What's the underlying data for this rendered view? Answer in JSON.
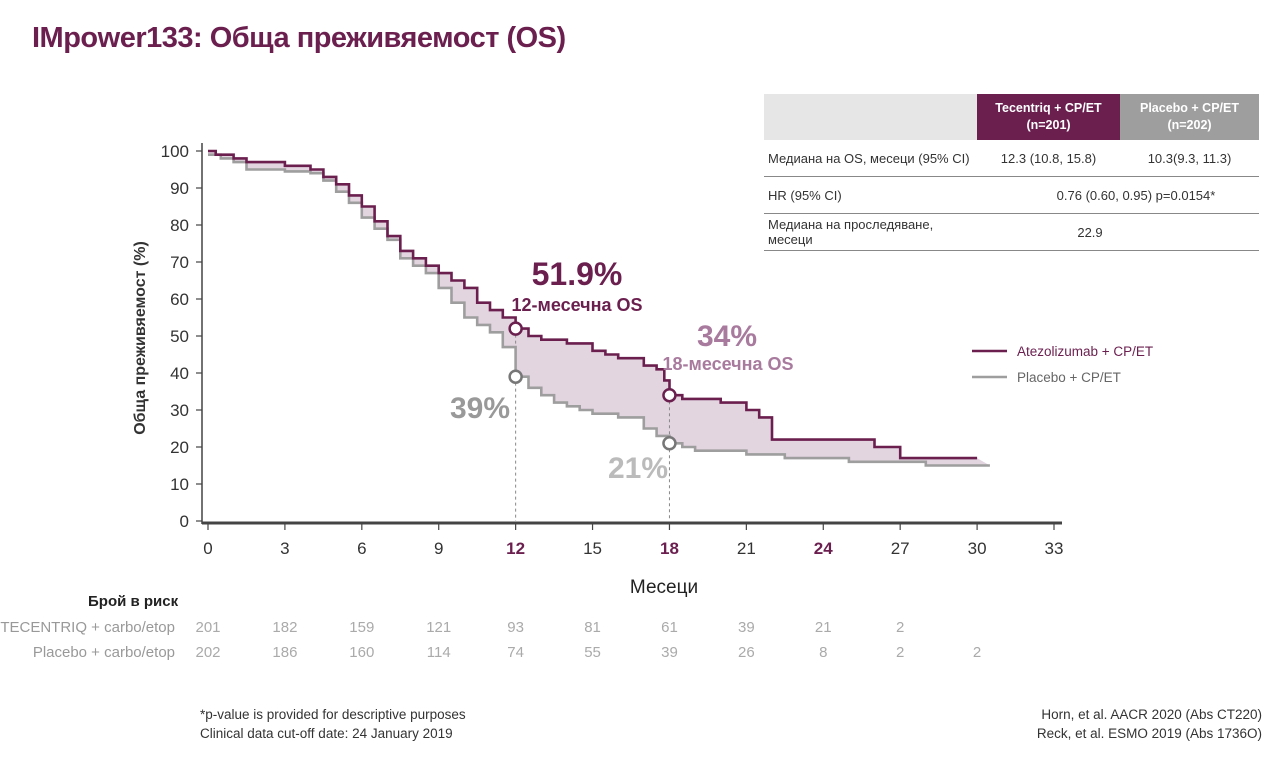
{
  "title": "IMpower133: Обща преживяемост (OS)",
  "colors": {
    "atezolizumab": "#6b1f4f",
    "placebo": "#9e9e9e",
    "fill": "#dccbd8",
    "annot_light": "#a87a9d"
  },
  "table": {
    "col_atz": "Tecentriq + CP/ET",
    "col_atz_n": "(n=201)",
    "col_pla": "Placebo + CP/ET",
    "col_pla_n": "(n=202)",
    "rows": [
      {
        "label": "Медиана на OS, месеци (95% CI)",
        "atz": "12.3 (10.8, 15.8)",
        "pla": "10.3(9.3, 11.3)"
      },
      {
        "label": "HR (95% CI)",
        "merged": "0.76 (0.60, 0.95) p=0.0154*"
      },
      {
        "label": "Медиана на проследяване, месеци",
        "merged": "22.9"
      }
    ]
  },
  "chart_data": {
    "type": "line",
    "ylabel": "Обща преживяемост (%)",
    "xlabel": "Месеци",
    "xlim": [
      0,
      33
    ],
    "ylim": [
      0,
      100
    ],
    "x_ticks": [
      "0",
      "3",
      "6",
      "9",
      "12",
      "15",
      "18",
      "21",
      "24",
      "27",
      "30",
      "33"
    ],
    "x_ticks_highlighted": [
      "12",
      "18",
      "24"
    ],
    "y_ticks": [
      "0",
      "10",
      "20",
      "30",
      "40",
      "50",
      "60",
      "70",
      "80",
      "90",
      "100"
    ],
    "legend": {
      "position": "right",
      "entries": [
        "Atezolizumab + CP/ET",
        "Placebo + CP/ET"
      ]
    },
    "series": [
      {
        "name": "Atezolizumab + CP/ET",
        "points": [
          [
            0,
            100
          ],
          [
            0.3,
            99
          ],
          [
            1,
            98
          ],
          [
            1.5,
            97
          ],
          [
            3,
            96
          ],
          [
            4,
            95
          ],
          [
            4.5,
            93
          ],
          [
            5,
            91
          ],
          [
            5.5,
            88
          ],
          [
            6,
            85
          ],
          [
            6.5,
            81
          ],
          [
            7,
            77
          ],
          [
            7.5,
            73
          ],
          [
            8,
            71
          ],
          [
            8.5,
            69
          ],
          [
            9,
            67
          ],
          [
            9.5,
            65
          ],
          [
            10,
            63
          ],
          [
            10.5,
            59
          ],
          [
            11,
            57
          ],
          [
            11.5,
            55
          ],
          [
            12,
            52
          ],
          [
            12.5,
            50
          ],
          [
            13,
            49
          ],
          [
            14,
            48
          ],
          [
            15,
            46
          ],
          [
            15.5,
            45
          ],
          [
            16,
            44
          ],
          [
            17,
            42
          ],
          [
            17.5,
            41
          ],
          [
            17.8,
            38
          ],
          [
            18,
            34
          ],
          [
            18.5,
            33
          ],
          [
            19,
            33
          ],
          [
            20,
            32
          ],
          [
            21,
            30
          ],
          [
            21.5,
            28
          ],
          [
            22,
            22
          ],
          [
            24,
            22
          ],
          [
            25.5,
            22
          ],
          [
            26,
            20
          ],
          [
            27,
            17
          ],
          [
            30,
            17
          ]
        ]
      },
      {
        "name": "Placebo + CP/ET",
        "points": [
          [
            0,
            99
          ],
          [
            0.5,
            98
          ],
          [
            1,
            97
          ],
          [
            1.5,
            95
          ],
          [
            3,
            94.5
          ],
          [
            4,
            94
          ],
          [
            4.5,
            92
          ],
          [
            5,
            89
          ],
          [
            5.5,
            86
          ],
          [
            6,
            82
          ],
          [
            6.5,
            79
          ],
          [
            7,
            76
          ],
          [
            7.5,
            71
          ],
          [
            8,
            69
          ],
          [
            8.5,
            67
          ],
          [
            9,
            63
          ],
          [
            9.5,
            59
          ],
          [
            10,
            55
          ],
          [
            10.5,
            53
          ],
          [
            11,
            51
          ],
          [
            11.5,
            47
          ],
          [
            12,
            39
          ],
          [
            12.5,
            36
          ],
          [
            13,
            34
          ],
          [
            13.5,
            32
          ],
          [
            14,
            31
          ],
          [
            14.5,
            30
          ],
          [
            15,
            29
          ],
          [
            15.5,
            29
          ],
          [
            16,
            28
          ],
          [
            17,
            25
          ],
          [
            17.5,
            23
          ],
          [
            18,
            21
          ],
          [
            18.5,
            20
          ],
          [
            19,
            19
          ],
          [
            20,
            19
          ],
          [
            21,
            18
          ],
          [
            22,
            18
          ],
          [
            22.5,
            17
          ],
          [
            24,
            17
          ],
          [
            25,
            16
          ],
          [
            26,
            16
          ],
          [
            28,
            15
          ],
          [
            30.5,
            15
          ]
        ]
      }
    ],
    "annotations": {
      "atz_12": {
        "value": "51.9%",
        "label": "12-месечна OS"
      },
      "atz_18": {
        "value": "34%",
        "label": "18-месечна OS"
      },
      "pla_12": {
        "value": "39%"
      },
      "pla_18": {
        "value": "21%"
      }
    },
    "markers": [
      {
        "series": "Atezolizumab + CP/ET",
        "x": 12,
        "y": 52
      },
      {
        "series": "Placebo + CP/ET",
        "x": 12,
        "y": 39
      },
      {
        "series": "Atezolizumab + CP/ET",
        "x": 18,
        "y": 34
      },
      {
        "series": "Placebo + CP/ET",
        "x": 18,
        "y": 21
      }
    ]
  },
  "risk": {
    "heading": "Брой в риск",
    "months": [
      0,
      3,
      6,
      9,
      12,
      15,
      18,
      21,
      24,
      27,
      30
    ],
    "rows": [
      {
        "label": "TECENTRIQ + carbo/etop",
        "values": [
          "201",
          "182",
          "159",
          "121",
          "93",
          "81",
          "61",
          "39",
          "21",
          "2",
          ""
        ]
      },
      {
        "label": "Placebo + carbo/etop",
        "values": [
          "202",
          "186",
          "160",
          "114",
          "74",
          "55",
          "39",
          "26",
          "8",
          "2",
          "2"
        ]
      }
    ]
  },
  "footnotes": {
    "left": [
      "*p-value is provided for descriptive purposes",
      "Clinical data cut-off date: 24 January 2019"
    ],
    "right": [
      "Horn, et al. AACR 2020 (Abs CT220)",
      "Reck, et al. ESMO 2019 (Abs 1736O)"
    ]
  }
}
